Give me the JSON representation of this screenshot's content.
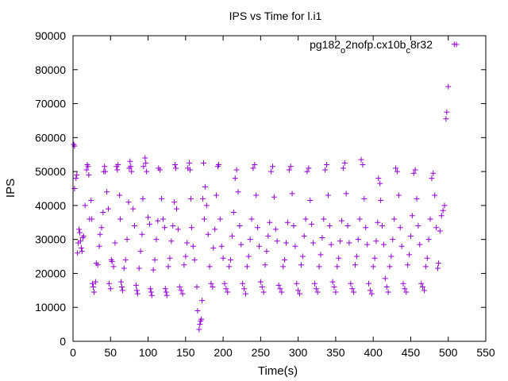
{
  "chart_data": {
    "type": "scatter",
    "title": "IPS vs Time for l.i1",
    "xlabel": "Time(s)",
    "ylabel": "IPS",
    "xlim": [
      0,
      550
    ],
    "ylim": [
      0,
      90000
    ],
    "x_ticks": [
      "0",
      "50",
      "100",
      "150",
      "200",
      "250",
      "300",
      "350",
      "400",
      "450",
      "500",
      "550"
    ],
    "y_ticks": [
      "0",
      "10000",
      "20000",
      "30000",
      "40000",
      "50000",
      "60000",
      "70000",
      "80000",
      "90000"
    ],
    "grid": false,
    "legend_position": "top-right",
    "marker": "plus",
    "legend_label": {
      "base": "pg182",
      "sub1": "o",
      "mid": "2nofp.cx10b",
      "sub2": "c",
      "end": "8r32"
    },
    "series": [
      {
        "color": "#9400d3",
        "points": [
          [
            1,
            58000
          ],
          [
            2,
            57500
          ],
          [
            2,
            45000
          ],
          [
            4,
            48000
          ],
          [
            5,
            49000
          ],
          [
            6,
            26000
          ],
          [
            7,
            29000
          ],
          [
            8,
            33000
          ],
          [
            9,
            32000
          ],
          [
            10,
            29500
          ],
          [
            11,
            27500
          ],
          [
            12,
            26500
          ],
          [
            13,
            30500
          ],
          [
            14,
            31000
          ],
          [
            16,
            40000
          ],
          [
            18,
            50500
          ],
          [
            19,
            52000
          ],
          [
            20,
            51500
          ],
          [
            21,
            49000
          ],
          [
            22,
            36000
          ],
          [
            24,
            41500
          ],
          [
            25,
            36000
          ],
          [
            26,
            17000
          ],
          [
            27,
            16000
          ],
          [
            28,
            14500
          ],
          [
            30,
            17500
          ],
          [
            31,
            23000
          ],
          [
            33,
            22500
          ],
          [
            35,
            28000
          ],
          [
            36,
            31500
          ],
          [
            38,
            33500
          ],
          [
            40,
            38000
          ],
          [
            41,
            50000
          ],
          [
            42,
            51500
          ],
          [
            43,
            50000
          ],
          [
            45,
            44000
          ],
          [
            47,
            39000
          ],
          [
            48,
            17000
          ],
          [
            50,
            15500
          ],
          [
            51,
            24000
          ],
          [
            52,
            23500
          ],
          [
            54,
            22000
          ],
          [
            56,
            29000
          ],
          [
            58,
            51500
          ],
          [
            59,
            50500
          ],
          [
            60,
            52000
          ],
          [
            62,
            43000
          ],
          [
            63,
            36000
          ],
          [
            64,
            17500
          ],
          [
            65,
            16000
          ],
          [
            66,
            15000
          ],
          [
            68,
            21500
          ],
          [
            70,
            24000
          ],
          [
            72,
            30000
          ],
          [
            74,
            41000
          ],
          [
            75,
            51000
          ],
          [
            76,
            53000
          ],
          [
            77,
            51500
          ],
          [
            78,
            50000
          ],
          [
            80,
            39000
          ],
          [
            82,
            34000
          ],
          [
            84,
            16500
          ],
          [
            85,
            15000
          ],
          [
            86,
            14000
          ],
          [
            88,
            21500
          ],
          [
            90,
            26500
          ],
          [
            92,
            31500
          ],
          [
            93,
            42000
          ],
          [
            94,
            51500
          ],
          [
            96,
            54000
          ],
          [
            97,
            52500
          ],
          [
            98,
            50000
          ],
          [
            100,
            36500
          ],
          [
            102,
            34500
          ],
          [
            103,
            15500
          ],
          [
            104,
            14500
          ],
          [
            105,
            13500
          ],
          [
            107,
            21000
          ],
          [
            109,
            24000
          ],
          [
            111,
            30000
          ],
          [
            113,
            35500
          ],
          [
            114,
            51000
          ],
          [
            116,
            50500
          ],
          [
            118,
            42000
          ],
          [
            120,
            36000
          ],
          [
            122,
            33500
          ],
          [
            123,
            15500
          ],
          [
            124,
            14500
          ],
          [
            125,
            13500
          ],
          [
            127,
            22000
          ],
          [
            129,
            24500
          ],
          [
            131,
            29500
          ],
          [
            133,
            34000
          ],
          [
            135,
            41000
          ],
          [
            136,
            52000
          ],
          [
            137,
            51000
          ],
          [
            138,
            39000
          ],
          [
            140,
            33000
          ],
          [
            142,
            16000
          ],
          [
            144,
            15000
          ],
          [
            146,
            14000
          ],
          [
            148,
            22500
          ],
          [
            150,
            25000
          ],
          [
            152,
            29000
          ],
          [
            153,
            51000
          ],
          [
            155,
            52500
          ],
          [
            156,
            50500
          ],
          [
            157,
            42000
          ],
          [
            158,
            33500
          ],
          [
            160,
            28000
          ],
          [
            162,
            24000
          ],
          [
            165,
            16000
          ],
          [
            166,
            9000
          ],
          [
            168,
            3500
          ],
          [
            169,
            5000
          ],
          [
            170,
            6000
          ],
          [
            171,
            6500
          ],
          [
            172,
            12000
          ],
          [
            173,
            42000
          ],
          [
            174,
            52500
          ],
          [
            175,
            36000
          ],
          [
            176,
            45500
          ],
          [
            178,
            40000
          ],
          [
            180,
            31500
          ],
          [
            182,
            22000
          ],
          [
            184,
            17000
          ],
          [
            186,
            16000
          ],
          [
            187,
            27500
          ],
          [
            189,
            33000
          ],
          [
            191,
            43000
          ],
          [
            193,
            51500
          ],
          [
            194,
            52000
          ],
          [
            196,
            36000
          ],
          [
            198,
            28000
          ],
          [
            200,
            24500
          ],
          [
            202,
            17000
          ],
          [
            204,
            15500
          ],
          [
            206,
            14500
          ],
          [
            208,
            22000
          ],
          [
            210,
            24000
          ],
          [
            212,
            31000
          ],
          [
            214,
            38000
          ],
          [
            216,
            48000
          ],
          [
            218,
            50500
          ],
          [
            220,
            44000
          ],
          [
            222,
            34000
          ],
          [
            224,
            28500
          ],
          [
            226,
            17000
          ],
          [
            228,
            15500
          ],
          [
            230,
            14000
          ],
          [
            232,
            22000
          ],
          [
            234,
            25000
          ],
          [
            236,
            30000
          ],
          [
            238,
            36000
          ],
          [
            240,
            51000
          ],
          [
            242,
            52000
          ],
          [
            244,
            43000
          ],
          [
            246,
            33500
          ],
          [
            248,
            28000
          ],
          [
            250,
            17500
          ],
          [
            252,
            16000
          ],
          [
            254,
            14500
          ],
          [
            256,
            22500
          ],
          [
            258,
            26500
          ],
          [
            260,
            31000
          ],
          [
            262,
            35000
          ],
          [
            264,
            50000
          ],
          [
            266,
            51500
          ],
          [
            268,
            42500
          ],
          [
            270,
            33000
          ],
          [
            272,
            29500
          ],
          [
            274,
            16500
          ],
          [
            276,
            15500
          ],
          [
            278,
            14500
          ],
          [
            280,
            22000
          ],
          [
            282,
            24000
          ],
          [
            284,
            29000
          ],
          [
            286,
            35000
          ],
          [
            288,
            50500
          ],
          [
            290,
            51500
          ],
          [
            292,
            43500
          ],
          [
            294,
            34000
          ],
          [
            296,
            28000
          ],
          [
            298,
            17000
          ],
          [
            300,
            15000
          ],
          [
            302,
            14000
          ],
          [
            304,
            22500
          ],
          [
            306,
            25000
          ],
          [
            308,
            31000
          ],
          [
            310,
            36000
          ],
          [
            312,
            50000
          ],
          [
            314,
            51000
          ],
          [
            316,
            41500
          ],
          [
            318,
            34500
          ],
          [
            320,
            29000
          ],
          [
            322,
            17000
          ],
          [
            324,
            15500
          ],
          [
            326,
            14500
          ],
          [
            328,
            22000
          ],
          [
            330,
            25500
          ],
          [
            332,
            30500
          ],
          [
            334,
            36000
          ],
          [
            336,
            50500
          ],
          [
            338,
            52000
          ],
          [
            340,
            43000
          ],
          [
            342,
            34000
          ],
          [
            344,
            28500
          ],
          [
            346,
            17500
          ],
          [
            348,
            16000
          ],
          [
            350,
            14500
          ],
          [
            352,
            22000
          ],
          [
            354,
            24500
          ],
          [
            356,
            29500
          ],
          [
            358,
            35500
          ],
          [
            360,
            51000
          ],
          [
            362,
            52500
          ],
          [
            364,
            43500
          ],
          [
            366,
            34000
          ],
          [
            368,
            29000
          ],
          [
            370,
            17000
          ],
          [
            372,
            15500
          ],
          [
            374,
            14500
          ],
          [
            376,
            22500
          ],
          [
            378,
            25000
          ],
          [
            380,
            30000
          ],
          [
            382,
            36000
          ],
          [
            384,
            53500
          ],
          [
            386,
            52000
          ],
          [
            388,
            42000
          ],
          [
            390,
            33500
          ],
          [
            392,
            28500
          ],
          [
            394,
            17000
          ],
          [
            396,
            15000
          ],
          [
            398,
            14000
          ],
          [
            400,
            22000
          ],
          [
            402,
            24500
          ],
          [
            404,
            29500
          ],
          [
            406,
            35000
          ],
          [
            407,
            48000
          ],
          [
            409,
            46500
          ],
          [
            410,
            41500
          ],
          [
            412,
            34000
          ],
          [
            414,
            28500
          ],
          [
            416,
            18500
          ],
          [
            418,
            16000
          ],
          [
            420,
            14500
          ],
          [
            422,
            22000
          ],
          [
            424,
            25000
          ],
          [
            426,
            30000
          ],
          [
            428,
            36000
          ],
          [
            430,
            51000
          ],
          [
            432,
            50000
          ],
          [
            434,
            43000
          ],
          [
            436,
            33500
          ],
          [
            438,
            28000
          ],
          [
            440,
            17000
          ],
          [
            442,
            15500
          ],
          [
            444,
            14500
          ],
          [
            446,
            22500
          ],
          [
            448,
            25500
          ],
          [
            450,
            31000
          ],
          [
            452,
            37000
          ],
          [
            454,
            49500
          ],
          [
            456,
            50500
          ],
          [
            458,
            42000
          ],
          [
            460,
            34000
          ],
          [
            462,
            28500
          ],
          [
            464,
            17000
          ],
          [
            466,
            16000
          ],
          [
            468,
            15000
          ],
          [
            470,
            22000
          ],
          [
            472,
            24500
          ],
          [
            474,
            30000
          ],
          [
            476,
            36000
          ],
          [
            478,
            48000
          ],
          [
            480,
            49500
          ],
          [
            482,
            43000
          ],
          [
            484,
            33500
          ],
          [
            486,
            21500
          ],
          [
            487,
            23000
          ],
          [
            489,
            32500
          ],
          [
            491,
            37000
          ],
          [
            493,
            38500
          ],
          [
            495,
            40000
          ],
          [
            497,
            65500
          ],
          [
            498,
            67500
          ],
          [
            500,
            75000
          ],
          [
            508,
            87500
          ]
        ]
      }
    ]
  }
}
